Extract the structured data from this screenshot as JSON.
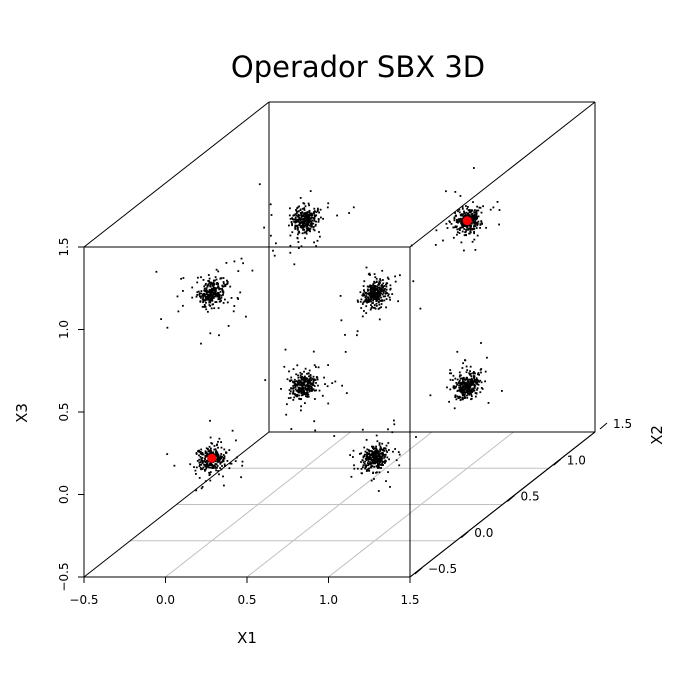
{
  "chart_data": {
    "type": "scatter",
    "projection": "3d-perspective-box",
    "title": "Operador SBX 3D",
    "xlabel": "X1",
    "ylabel": "X2",
    "zlabel": "X3",
    "xlim": [
      -0.5,
      1.5
    ],
    "ylim": [
      -0.5,
      1.5
    ],
    "zlim": [
      -0.5,
      1.5
    ],
    "x_ticks": [
      "−0.5",
      "0.0",
      "0.5",
      "1.0",
      "1.5"
    ],
    "y_ticks": [
      "−0.5",
      "0.0",
      "0.5",
      "1.0",
      "1.5"
    ],
    "z_ticks": [
      "−0.5",
      "0.0",
      "0.5",
      "1.0",
      "1.5"
    ],
    "grid": "floor",
    "series": [
      {
        "color": "#000000",
        "marker": "dot",
        "clusters": [
          {
            "x": 0,
            "y": 0,
            "z": 0
          },
          {
            "x": 1,
            "y": 0,
            "z": 0
          },
          {
            "x": 0,
            "y": 0,
            "z": 1
          },
          {
            "x": 1,
            "y": 0,
            "z": 1
          },
          {
            "x": 0,
            "y": 1,
            "z": 0
          },
          {
            "x": 1,
            "y": 1,
            "z": 0
          },
          {
            "x": 0,
            "y": 1,
            "z": 1
          },
          {
            "x": 1,
            "y": 1,
            "z": 1
          }
        ],
        "spread_sd": 0.035,
        "points_per_cluster": 300
      },
      {
        "color": "#ff0000",
        "marker": "filled-circle",
        "points": [
          {
            "x": 0,
            "y": 0,
            "z": 0
          },
          {
            "x": 1,
            "y": 1,
            "z": 1
          }
        ]
      }
    ]
  }
}
